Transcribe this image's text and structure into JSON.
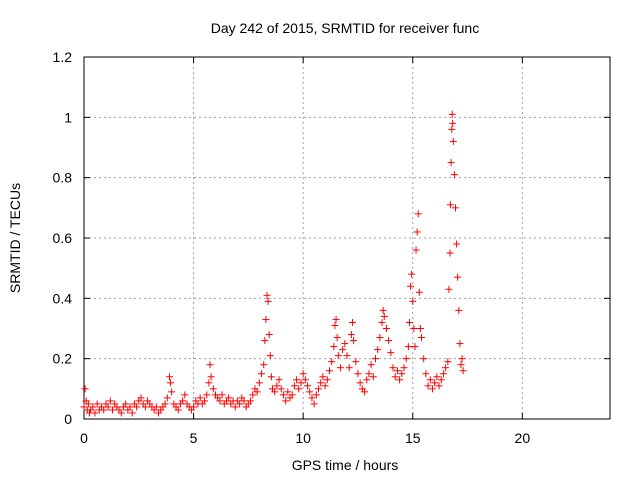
{
  "chart_data": {
    "type": "scatter",
    "title": "Day 242 of 2015, SRMTID for receiver func",
    "xlabel": "GPS time / hours",
    "ylabel": "SRMTID / TECUs",
    "xlim": [
      0,
      24
    ],
    "ylim": [
      0,
      1.2
    ],
    "xticks": [
      0,
      5,
      10,
      15,
      20
    ],
    "xtick_labels": [
      "0",
      "5",
      "10",
      "15",
      "20"
    ],
    "yticks": [
      0,
      0.2,
      0.4,
      0.6,
      0.8,
      1.0,
      1.2
    ],
    "ytick_labels": [
      "0",
      "0.2",
      "0.4",
      "0.6",
      "0.8",
      "1",
      "1.2"
    ],
    "grid": true,
    "marker": "plus",
    "color": "#ff0000",
    "series": [
      {
        "name": "SRMTID",
        "points": [
          [
            0.0,
            0.04
          ],
          [
            0.05,
            0.1
          ],
          [
            0.1,
            0.06
          ],
          [
            0.15,
            0.03
          ],
          [
            0.2,
            0.05
          ],
          [
            0.25,
            0.02
          ],
          [
            0.3,
            0.03
          ],
          [
            0.4,
            0.04
          ],
          [
            0.5,
            0.02
          ],
          [
            0.6,
            0.05
          ],
          [
            0.7,
            0.03
          ],
          [
            0.8,
            0.04
          ],
          [
            0.9,
            0.03
          ],
          [
            1.0,
            0.05
          ],
          [
            1.1,
            0.04
          ],
          [
            1.2,
            0.06
          ],
          [
            1.3,
            0.03
          ],
          [
            1.4,
            0.05
          ],
          [
            1.5,
            0.04
          ],
          [
            1.6,
            0.03
          ],
          [
            1.7,
            0.02
          ],
          [
            1.8,
            0.04
          ],
          [
            1.9,
            0.05
          ],
          [
            2.0,
            0.03
          ],
          [
            2.1,
            0.04
          ],
          [
            2.2,
            0.02
          ],
          [
            2.3,
            0.05
          ],
          [
            2.4,
            0.04
          ],
          [
            2.5,
            0.06
          ],
          [
            2.6,
            0.07
          ],
          [
            2.7,
            0.05
          ],
          [
            2.8,
            0.04
          ],
          [
            2.9,
            0.06
          ],
          [
            3.0,
            0.05
          ],
          [
            3.1,
            0.04
          ],
          [
            3.2,
            0.03
          ],
          [
            3.3,
            0.04
          ],
          [
            3.4,
            0.02
          ],
          [
            3.5,
            0.03
          ],
          [
            3.6,
            0.04
          ],
          [
            3.7,
            0.05
          ],
          [
            3.8,
            0.07
          ],
          [
            3.9,
            0.14
          ],
          [
            3.95,
            0.12
          ],
          [
            4.0,
            0.09
          ],
          [
            4.1,
            0.05
          ],
          [
            4.2,
            0.04
          ],
          [
            4.3,
            0.03
          ],
          [
            4.4,
            0.05
          ],
          [
            4.5,
            0.06
          ],
          [
            4.6,
            0.08
          ],
          [
            4.7,
            0.05
          ],
          [
            4.8,
            0.04
          ],
          [
            4.9,
            0.03
          ],
          [
            5.0,
            0.04
          ],
          [
            5.1,
            0.06
          ],
          [
            5.2,
            0.05
          ],
          [
            5.3,
            0.07
          ],
          [
            5.4,
            0.05
          ],
          [
            5.5,
            0.06
          ],
          [
            5.6,
            0.08
          ],
          [
            5.7,
            0.12
          ],
          [
            5.75,
            0.18
          ],
          [
            5.8,
            0.14
          ],
          [
            5.9,
            0.1
          ],
          [
            6.0,
            0.08
          ],
          [
            6.1,
            0.07
          ],
          [
            6.2,
            0.06
          ],
          [
            6.3,
            0.08
          ],
          [
            6.4,
            0.05
          ],
          [
            6.5,
            0.06
          ],
          [
            6.6,
            0.07
          ],
          [
            6.7,
            0.05
          ],
          [
            6.8,
            0.06
          ],
          [
            6.9,
            0.04
          ],
          [
            7.0,
            0.06
          ],
          [
            7.1,
            0.05
          ],
          [
            7.2,
            0.07
          ],
          [
            7.3,
            0.06
          ],
          [
            7.4,
            0.04
          ],
          [
            7.5,
            0.05
          ],
          [
            7.6,
            0.06
          ],
          [
            7.7,
            0.08
          ],
          [
            7.8,
            0.1
          ],
          [
            7.9,
            0.09
          ],
          [
            8.0,
            0.12
          ],
          [
            8.1,
            0.15
          ],
          [
            8.2,
            0.18
          ],
          [
            8.25,
            0.26
          ],
          [
            8.3,
            0.33
          ],
          [
            8.35,
            0.41
          ],
          [
            8.4,
            0.39
          ],
          [
            8.45,
            0.28
          ],
          [
            8.5,
            0.21
          ],
          [
            8.55,
            0.14
          ],
          [
            8.6,
            0.1
          ],
          [
            8.7,
            0.09
          ],
          [
            8.8,
            0.11
          ],
          [
            8.9,
            0.13
          ],
          [
            9.0,
            0.1
          ],
          [
            9.1,
            0.08
          ],
          [
            9.2,
            0.06
          ],
          [
            9.3,
            0.09
          ],
          [
            9.4,
            0.07
          ],
          [
            9.5,
            0.08
          ],
          [
            9.6,
            0.11
          ],
          [
            9.7,
            0.13
          ],
          [
            9.8,
            0.1
          ],
          [
            9.9,
            0.12
          ],
          [
            10.0,
            0.15
          ],
          [
            10.1,
            0.13
          ],
          [
            10.2,
            0.11
          ],
          [
            10.3,
            0.09
          ],
          [
            10.4,
            0.07
          ],
          [
            10.5,
            0.05
          ],
          [
            10.6,
            0.08
          ],
          [
            10.7,
            0.1
          ],
          [
            10.8,
            0.12
          ],
          [
            10.9,
            0.14
          ],
          [
            11.0,
            0.11
          ],
          [
            11.1,
            0.13
          ],
          [
            11.2,
            0.16
          ],
          [
            11.3,
            0.19
          ],
          [
            11.4,
            0.24
          ],
          [
            11.45,
            0.31
          ],
          [
            11.5,
            0.33
          ],
          [
            11.55,
            0.27
          ],
          [
            11.6,
            0.21
          ],
          [
            11.7,
            0.17
          ],
          [
            11.8,
            0.23
          ],
          [
            11.9,
            0.25
          ],
          [
            12.0,
            0.21
          ],
          [
            12.1,
            0.17
          ],
          [
            12.2,
            0.28
          ],
          [
            12.25,
            0.32
          ],
          [
            12.3,
            0.26
          ],
          [
            12.4,
            0.19
          ],
          [
            12.5,
            0.15
          ],
          [
            12.6,
            0.12
          ],
          [
            12.7,
            0.1
          ],
          [
            12.8,
            0.09
          ],
          [
            12.9,
            0.13
          ],
          [
            13.0,
            0.15
          ],
          [
            13.1,
            0.18
          ],
          [
            13.2,
            0.14
          ],
          [
            13.3,
            0.2
          ],
          [
            13.4,
            0.23
          ],
          [
            13.5,
            0.27
          ],
          [
            13.6,
            0.32
          ],
          [
            13.65,
            0.36
          ],
          [
            13.7,
            0.34
          ],
          [
            13.8,
            0.3
          ],
          [
            13.9,
            0.26
          ],
          [
            14.0,
            0.22
          ],
          [
            14.1,
            0.17
          ],
          [
            14.2,
            0.14
          ],
          [
            14.3,
            0.16
          ],
          [
            14.4,
            0.13
          ],
          [
            14.5,
            0.15
          ],
          [
            14.6,
            0.17
          ],
          [
            14.7,
            0.2
          ],
          [
            14.8,
            0.24
          ],
          [
            14.85,
            0.32
          ],
          [
            14.9,
            0.44
          ],
          [
            14.95,
            0.48
          ],
          [
            15.0,
            0.39
          ],
          [
            15.05,
            0.3
          ],
          [
            15.1,
            0.24
          ],
          [
            15.15,
            0.56
          ],
          [
            15.2,
            0.62
          ],
          [
            15.25,
            0.68
          ],
          [
            15.3,
            0.42
          ],
          [
            15.35,
            0.3
          ],
          [
            15.4,
            0.27
          ],
          [
            15.5,
            0.2
          ],
          [
            15.6,
            0.15
          ],
          [
            15.7,
            0.11
          ],
          [
            15.8,
            0.13
          ],
          [
            15.9,
            0.1
          ],
          [
            16.0,
            0.12
          ],
          [
            16.1,
            0.14
          ],
          [
            16.2,
            0.11
          ],
          [
            16.3,
            0.13
          ],
          [
            16.4,
            0.15
          ],
          [
            16.5,
            0.17
          ],
          [
            16.6,
            0.19
          ],
          [
            16.65,
            0.43
          ],
          [
            16.7,
            0.55
          ],
          [
            16.72,
            0.71
          ],
          [
            16.75,
            0.85
          ],
          [
            16.78,
            0.96
          ],
          [
            16.8,
            1.01
          ],
          [
            16.82,
            0.98
          ],
          [
            16.85,
            0.92
          ],
          [
            16.9,
            0.81
          ],
          [
            16.95,
            0.7
          ],
          [
            17.0,
            0.58
          ],
          [
            17.05,
            0.47
          ],
          [
            17.1,
            0.36
          ],
          [
            17.15,
            0.25
          ],
          [
            17.2,
            0.18
          ],
          [
            17.25,
            0.2
          ],
          [
            17.3,
            0.16
          ]
        ]
      }
    ]
  }
}
